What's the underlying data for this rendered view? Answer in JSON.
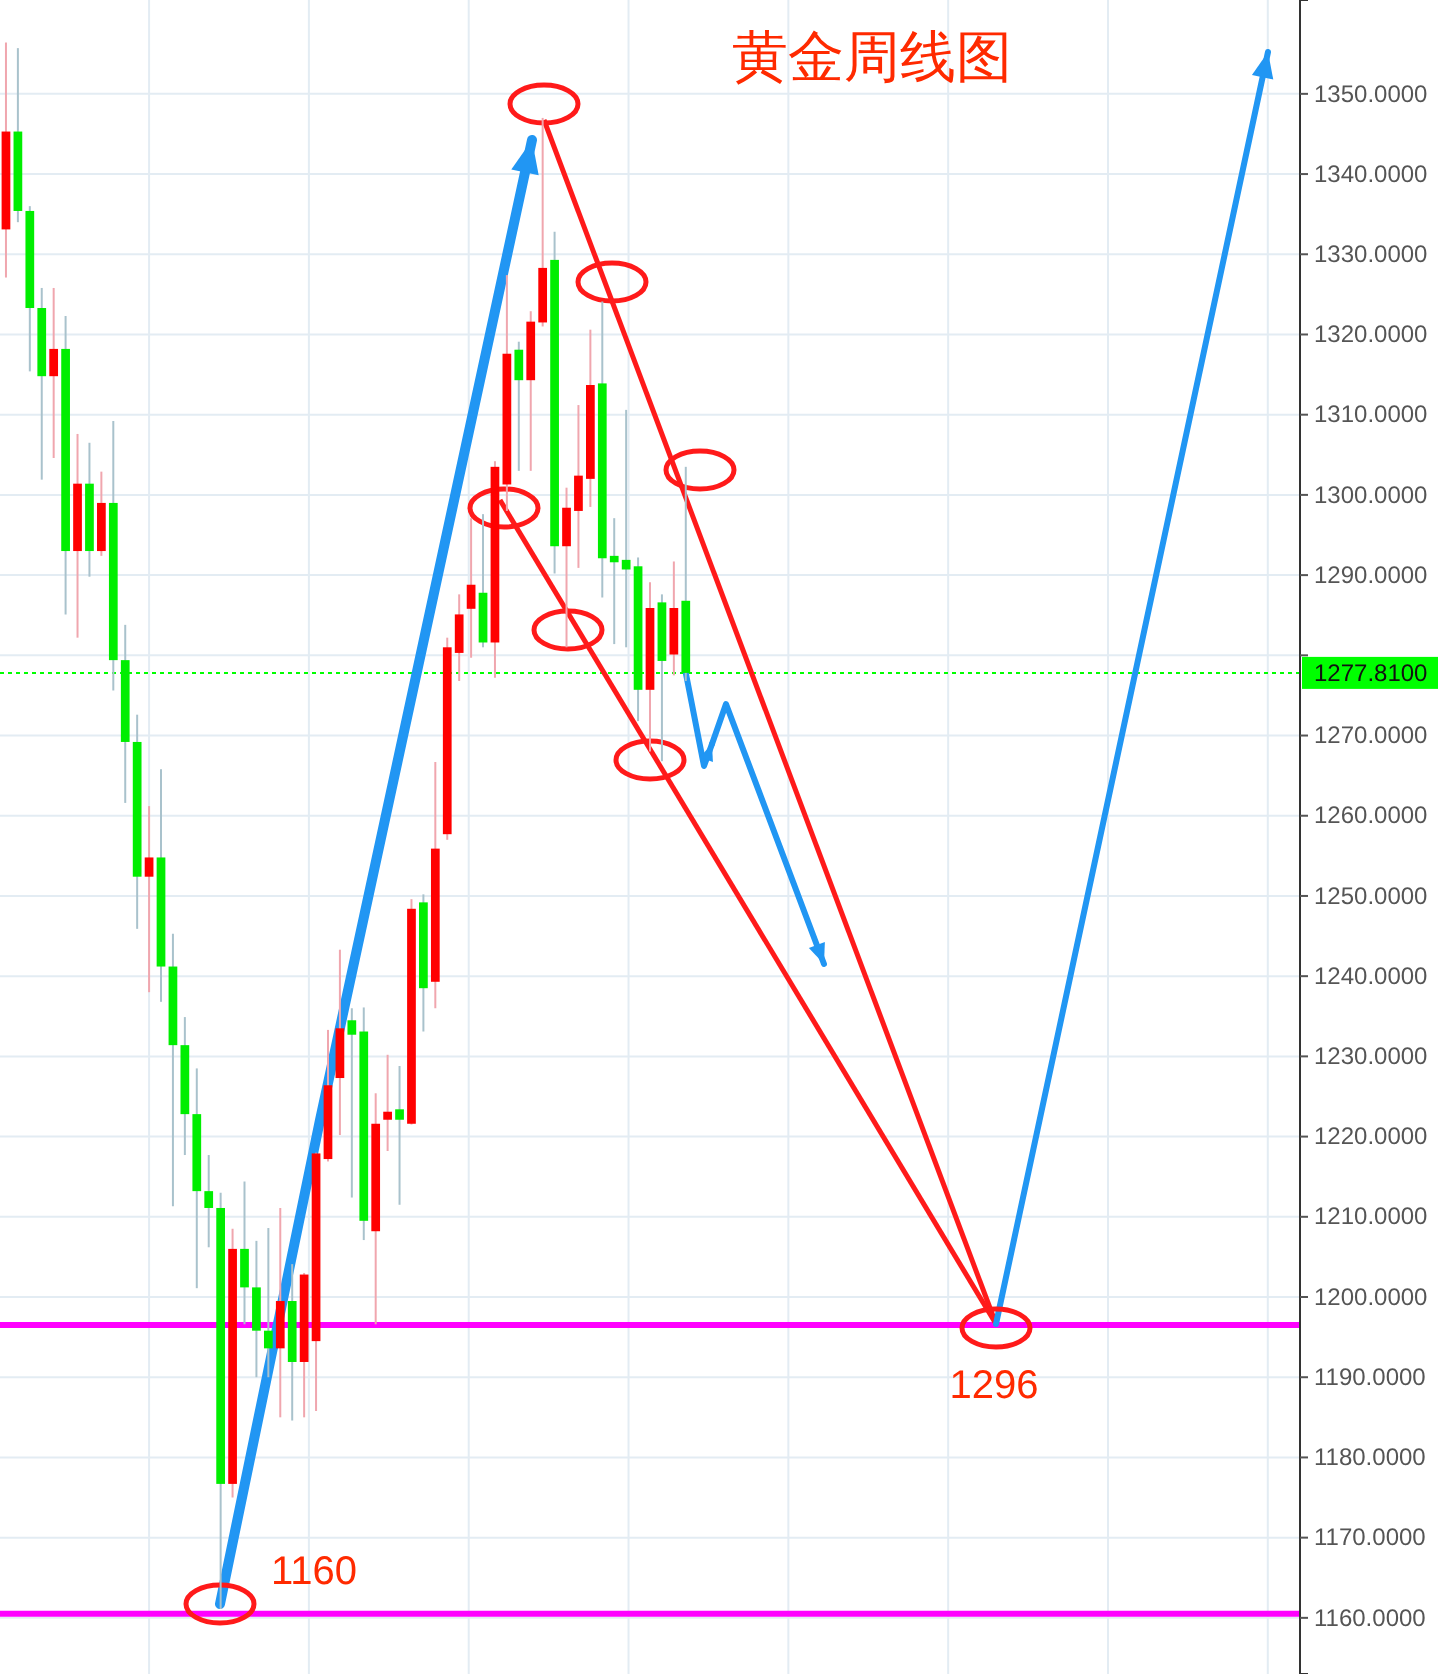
{
  "chart_data": {
    "type": "candlestick",
    "title": "黄金周线图",
    "categories": [
      null,
      null,
      null,
      null,
      null,
      null,
      null,
      null,
      null,
      null,
      null,
      null,
      null,
      null,
      null,
      null,
      null,
      null,
      null,
      null,
      null,
      null,
      null,
      null,
      null,
      null,
      null,
      null,
      null,
      null,
      null,
      null,
      null,
      null,
      null,
      null,
      null,
      null,
      null,
      null,
      null,
      null,
      null,
      null,
      null,
      null,
      null,
      null,
      null,
      null,
      null,
      null,
      null,
      null,
      null,
      null,
      null,
      null,
      null,
      null,
      null,
      null,
      null,
      null,
      null,
      null,
      null,
      null,
      null,
      null,
      null,
      null,
      null,
      null,
      null,
      null,
      null,
      null,
      null,
      null,
      null,
      null,
      null,
      null,
      null,
      null,
      null,
      null,
      null,
      null,
      null,
      null,
      null,
      null,
      null,
      null,
      null,
      null,
      null,
      null,
      null,
      null,
      null,
      null,
      null,
      null,
      null,
      null,
      null
    ],
    "ohlc": [
      [
        1333.1,
        1356.4,
        1327.1,
        1345.3
      ],
      [
        1345.3,
        1355.7,
        1334,
        1335.4
      ],
      [
        1335.4,
        1336,
        1315.4,
        1323.3
      ],
      [
        1323.3,
        1325.8,
        1301.9,
        1314.8
      ],
      [
        1314.8,
        1325.8,
        1304.6,
        1318.2
      ],
      [
        1318.2,
        1322.3,
        1285.1,
        1293.0
      ],
      [
        1293.0,
        1307.6,
        1282.2,
        1301.4
      ],
      [
        1301.4,
        1306.5,
        1289.8,
        1293.0
      ],
      [
        1293.0,
        1302.9,
        1292.4,
        1299.0
      ],
      [
        1299.0,
        1309.2,
        1275.6,
        1279.4
      ],
      [
        1279.4,
        1283.8,
        1261.6,
        1269.2
      ],
      [
        1269.2,
        1272.6,
        1245.9,
        1252.4
      ],
      [
        1252.4,
        1261.2,
        1238.0,
        1254.8
      ],
      [
        1254.8,
        1265.8,
        1236.8,
        1241.2
      ],
      [
        1241.2,
        1245.3,
        1211.3,
        1231.4
      ],
      [
        1231.4,
        1234.9,
        1217.7,
        1222.8
      ],
      [
        1222.8,
        1228.5,
        1201.1,
        1213.2
      ],
      [
        1213.2,
        1217.7,
        1206.2,
        1211.1
      ],
      [
        1211.1,
        1213,
        1161.1,
        1176.7
      ],
      [
        1176.7,
        1208.5,
        1175,
        1206.0
      ],
      [
        1206.0,
        1214.4,
        1196.6,
        1201.2
      ],
      [
        1201.2,
        1207.0,
        1190.0,
        1195.8
      ],
      [
        1195.8,
        1208.6,
        1190.0,
        1193.6
      ],
      [
        1193.6,
        1211.1,
        1185,
        1199.5
      ],
      [
        1199.5,
        1204.1,
        1184.6,
        1191.9
      ],
      [
        1191.9,
        1203,
        1185.0,
        1202.8
      ],
      [
        1194.5,
        1218,
        1185.8,
        1217.9
      ],
      [
        1217.2,
        1233.3,
        1216.9,
        1226.4
      ],
      [
        1227.3,
        1243.3,
        1220.2,
        1233.5
      ],
      [
        1234.5,
        1236.0,
        1212.4,
        1232.7
      ],
      [
        1233.1,
        1236.1,
        1207.1,
        1209.5
      ],
      [
        1208.2,
        1225.4,
        1196.6,
        1221.6
      ],
      [
        1222.1,
        1230.2,
        1218.2,
        1223.1
      ],
      [
        1223.4,
        1228.8,
        1211.5,
        1222.1
      ],
      [
        1221.6,
        1249.6,
        1221.5,
        1248.4
      ],
      [
        1249.2,
        1250.2,
        1233.1,
        1238.5
      ],
      [
        1239.3,
        1266.7,
        1236.0,
        1255.9
      ],
      [
        1257.7,
        1282.2,
        1257,
        1281.0
      ],
      [
        1280.3,
        1287.6,
        1276.8,
        1285.1
      ],
      [
        1285.8,
        1297.1,
        1279.7,
        1288.8
      ],
      [
        1287.8,
        1297.6,
        1281.0,
        1281.6
      ],
      [
        1281.6,
        1304.2,
        1277.2,
        1303.5
      ],
      [
        1301.3,
        1327.4,
        1298.0,
        1317.6
      ],
      [
        1318.1,
        1319.1,
        1303.0,
        1314.3
      ],
      [
        1314.3,
        1322.9,
        1303.0,
        1321.6
      ],
      [
        1321.5,
        1347,
        1321.0,
        1328.3
      ],
      [
        1329.3,
        1332.8,
        1290.2,
        1293.6
      ],
      [
        1293.6,
        1300.9,
        1281.0,
        1298.4
      ],
      [
        1298.0,
        1311.2,
        1290.9,
        1302.4
      ],
      [
        1302.0,
        1320.6,
        1298.5,
        1313.7
      ],
      [
        1313.9,
        1324.1,
        1287.2,
        1292.1
      ],
      [
        1292.4,
        1297.1,
        1281.4,
        1291.6
      ],
      [
        1291.9,
        1310.6,
        1281.0,
        1290.7
      ],
      [
        1291.1,
        1292.2,
        1271.8,
        1275.7
      ],
      [
        1275.7,
        1289.1,
        1268.0,
        1285.9
      ],
      [
        1286.6,
        1287.6,
        1266.8,
        1279.3
      ],
      [
        1280.1,
        1291.7,
        1277.5,
        1285.9
      ],
      [
        1286.8,
        1303.5,
        1276.8,
        1277.81
      ],
      null,
      null,
      null,
      null,
      null,
      null,
      null,
      null,
      null,
      null,
      null,
      null,
      null,
      null,
      null,
      null,
      null,
      null,
      null,
      null,
      null,
      null,
      null,
      null,
      null,
      null,
      null,
      null,
      null,
      null,
      null,
      null,
      null,
      null,
      null,
      null,
      null,
      null,
      null,
      null,
      null,
      null,
      null,
      null,
      null,
      null,
      null,
      null,
      null,
      null,
      null
    ],
    "ylim": [
      1153,
      1361.7
    ],
    "yticks": [
      {
        "value": 1160,
        "label": "1160.0000"
      },
      {
        "value": 1170,
        "label": "1170.0000"
      },
      {
        "value": 1180,
        "label": "1180.0000"
      },
      {
        "value": 1190,
        "label": "1190.0000"
      },
      {
        "value": 1200,
        "label": "1200.0000"
      },
      {
        "value": 1210,
        "label": "1210.0000"
      },
      {
        "value": 1220,
        "label": "1220.0000"
      },
      {
        "value": 1230,
        "label": "1230.0000"
      },
      {
        "value": 1240,
        "label": "1240.0000"
      },
      {
        "value": 1250,
        "label": "1250.0000"
      },
      {
        "value": 1260,
        "label": "1260.0000"
      },
      {
        "value": 1270,
        "label": "1270.0000"
      },
      {
        "value": 1280,
        "label": null
      },
      {
        "value": 1290,
        "label": "1290.0000"
      },
      {
        "value": 1300,
        "label": "1300.0000"
      },
      {
        "value": 1310,
        "label": "1310.0000"
      },
      {
        "value": 1320,
        "label": "1320.0000"
      },
      {
        "value": 1330,
        "label": "1330.0000"
      },
      {
        "value": 1340,
        "label": "1340.0000"
      },
      {
        "value": 1350,
        "label": "1350.0000"
      }
    ],
    "grid": true,
    "ref_lines": [
      {
        "axis": "y",
        "value": 1277.81,
        "label": "1277.8100",
        "color": "#00ff00",
        "line_style": "dotted"
      },
      {
        "axis": "y",
        "value": 1196.5,
        "color": "#ff00ff",
        "line_style": "solid"
      },
      {
        "axis": "y",
        "value": 1160.5,
        "color": "#ff00ff",
        "line_style": "solid"
      }
    ],
    "annotations": [
      "1160",
      "1296"
    ]
  }
}
